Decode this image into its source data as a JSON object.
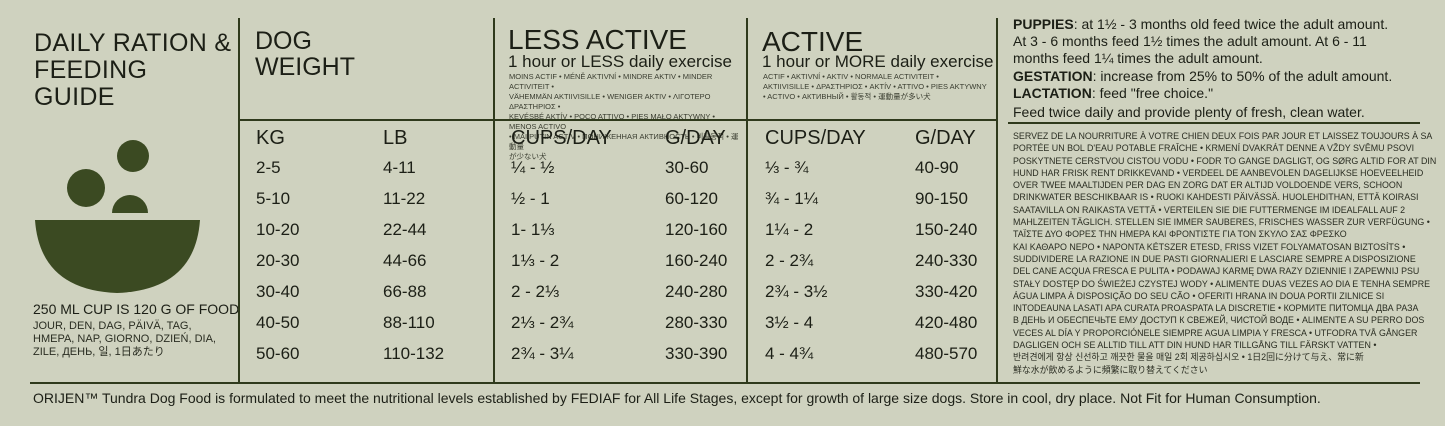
{
  "guide_title": [
    "DAILY RATION &",
    "FEEDING GUIDE"
  ],
  "cup_note": "250 ML CUP IS 120 G OF FOOD",
  "cup_translations": [
    "JOUR, DEN, DAG, PÄIVÄ, TAG,",
    "ΗΜΕΡΑ, NAP, GIORNO, DZIEŃ, DIA,",
    "ZILE, ДЕНЬ, 일, 1日あたり"
  ],
  "dog_weight": [
    "DOG",
    "WEIGHT"
  ],
  "less_active": {
    "title": "LESS ACTIVE",
    "subtitle": "1 hour or LESS daily exercise",
    "translations": [
      "MOINS ACTIF • MÉNĚ AKTIVNÍ • MINDRE AKTIV • MINDER ACTIVITEIT •",
      "VÄHEMMÄN AKTIIVISILLE • WENIGER AKTIV • ΛΙΓΟΤΕΡΟ ΔΡΑΣΤΗΡΙΟΣ •",
      "KEVÉSBÉ AKTÍV • POCO ATTIVO • PIES MAŁO AKTYWNY • MENOS ACTIVO",
      "• MAI PUTIN ACTIV • ПОНИЖЕННАЯ АКТИВНОСТЬ • 비활동적 • 運動量",
      "が少ない犬"
    ]
  },
  "active": {
    "title": "ACTIVE",
    "subtitle": "1 hour or MORE daily exercise",
    "translations": [
      "ACTIF • AKTIVNÍ • AKTIV • NORMALE ACTIVITEIT •",
      "AKTIIVISILLE • ΔΡΑΣΤΗΡΙΟΣ • AKTÍV • ATTIVO • PIES AKTYWNY",
      "• ACTIVO • АКТИВНЫЙ • 활동적 • 運動量が多い犬"
    ]
  },
  "columns": [
    "KG",
    "LB",
    "CUPS/DAY",
    "G/DAY",
    "CUPS/DAY",
    "G/DAY"
  ],
  "rows": [
    [
      "2-5",
      "4-11",
      "¼ - ½",
      "30-60",
      "⅓ - ¾",
      "40-90"
    ],
    [
      "5-10",
      "11-22",
      "½ - 1",
      "60-120",
      "¾ - 1¼",
      "90-150"
    ],
    [
      "10-20",
      "22-44",
      "1- 1⅓",
      "120-160",
      "1¼ - 2",
      "150-240"
    ],
    [
      "20-30",
      "44-66",
      "1⅓ - 2",
      "160-240",
      "2 - 2¾",
      "240-330"
    ],
    [
      "30-40",
      "66-88",
      "2 - 2⅓",
      "240-280",
      "2¾ - 3½",
      "330-420"
    ],
    [
      "40-50",
      "88-110",
      "2⅓ - 2¾",
      "280-330",
      "3½ - 4",
      "420-480"
    ],
    [
      "50-60",
      "110-132",
      "2¾ - 3¼",
      "330-390",
      "4 - 4¾",
      "480-570"
    ]
  ],
  "puppies": {
    "label": "PUPPIES",
    "text1": ": at 1½ - 3 months old feed twice the adult amount.",
    "text2": "At  3 - 6 months feed 1½ times the adult amount. At 6 - 11",
    "text3": "months feed 1¼ times the adult amount."
  },
  "gestation": {
    "label": "GESTATION",
    "text": ": increase from 25% to 50% of the adult amount."
  },
  "lactation": {
    "label": "LACTATION",
    "text": ": feed \"free choice.\""
  },
  "feed_twice": "Feed twice daily and provide plenty of fresh, clean water.",
  "multilingual": [
    "SERVEZ DE LA NOURRITURE À VOTRE CHIEN DEUX FOIS PAR JOUR ET LAISSEZ TOUJOURS À SA",
    "PORTÉE UN BOL D'EAU POTABLE FRAÎCHE • KRMENÍ DVAKRÁT DENNE A VŽDY SVĚMU PSOVI",
    "POSKYTNETE CERSTVOU CISTOU VODU • FODR TO GANGE DAGLIGT, OG SØRG ALTID FOR AT DIN",
    "HUND HAR FRISK RENT DRIKKEVAND • VERDEEL DE AANBEVOLEN DAGELIJKSE HOEVEELHEID",
    "OVER TWEE MAALTIJDEN PER DAG EN ZORG DAT ER ALTIJD VOLDOENDE VERS, SCHOON",
    "DRINKWATER BESCHIKBAAR IS • RUOKI KAHDESTI PÄIVÄSSÄ. HUOLEHDITHAN, ETTÄ KOIRASI",
    "SAATAVILLA ON RAIKASTA VETTÄ • VERTEILEN SIE DIE FUTTERMENGE IM IDEALFALL AUF 2",
    "MAHLZEITEN TÄGLICH. STELLEN SIE IMMER SAUBERES, FRISCHES WASSER ZUR VERFÜGUNG •",
    "ΤΑΪΣΤΕ ΔΥΟ ΦΟΡΕΣ ΤΗΝ ΗΜΕΡΑ ΚΑΙ ΦΡΟΝΤΙΣΤΕ ΓΙΑ ΤΟΝ ΣΚΥΛΟ ΣΑΣ ΦΡΕΣΚΟ",
    "ΚΑΙ ΚΑΘΑΡΟ ΝΕΡΟ • NAPONTA KÉTSZER ETESD, FRISS VIZET FOLYAMATOSAN BIZTOSÍTS •",
    "SUDDIVIDERE LA RAZIONE IN DUE PASTI GIORNALIERI E LASCIARE SEMPRE A DISPOSIZIONE",
    "DEL CANE ACQUA FRESCA E PULITA • PODAWAJ KARMĘ DWA RAZY DZIENNIE I ZAPEWNIJ PSU",
    "STAŁY DOSTĘP DO ŚWIEŻEJ CZYSTEJ WODY • ALIMENTE DUAS VEZES AO DIA E TENHA SEMPRE",
    "ÁGUA LIMPA À DISPOSIÇÃO DO SEU CÃO • OFERITI HRANA IN DOUA PORTII ZILNICE SI",
    "INTODEAUNA LASATI APA CURATA PROASPATA LA DISCRETIE • КОРМИТЕ ПИТОМЦА ДВА РАЗА",
    "В ДЕНЬ И ОБЕСПЕЧЬТЕ ЕМУ ДОСТУП К СВЕЖЕЙ, ЧИСТОЙ ВОДЕ • ALIMENTE A SU PERRO DOS",
    "VECES AL DÍA Y PROPORCIÓNELE SIEMPRE AGUA LIMPIA Y FRESCA • UTFODRA TVÅ GÅNGER",
    "DAGLIGEN OCH SE ALLTID TILL ATT DIN HUND HAR TILLGÅNG TILL FÄRSKT VATTEN •",
    "반려견에게 항상 신선하고 깨끗한 물을 매일 2회 제공하십시오 • 1日2回に分けて与え、常に新",
    "鮮な水が飲めるように頻繁に取り替えてください"
  ],
  "footer": "ORIJEN™ Tundra Dog Food is formulated to meet the nutritional levels established by FEDIAF for All Life Stages, except for growth of large size dogs. Store in cool, dry place. Not Fit for Human Consumption.",
  "colors": {
    "background": "#cfd2bf",
    "ink": "#1c1f16",
    "icon": "#3b4a22"
  },
  "icons": [
    "food-bowl-icon",
    "kibble-icon"
  ]
}
